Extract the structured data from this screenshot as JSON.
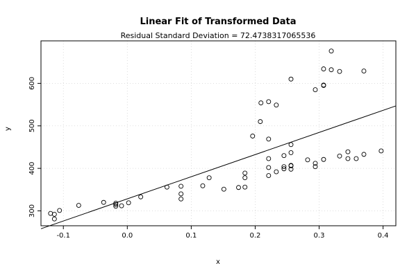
{
  "chart_data": {
    "type": "scatter",
    "title": "Linear Fit of Transformed Data",
    "subtitle": "Residual Standard Deviation =  72.4738317065536",
    "xlabel": "x",
    "ylabel": "y",
    "xlim": [
      -0.135,
      0.42
    ],
    "ylim": [
      265,
      700
    ],
    "xticks": [
      -0.1,
      0.0,
      0.1,
      0.2,
      0.3,
      0.4
    ],
    "xtick_labels": [
      "-0.1",
      "0.0",
      "0.1",
      "0.2",
      "0.3",
      "0.4"
    ],
    "yticks": [
      300,
      400,
      500,
      600
    ],
    "ytick_labels": [
      "300",
      "400",
      "500",
      "600"
    ],
    "grid": true,
    "fit_line": {
      "x": [
        -0.135,
        0.42
      ],
      "y": [
        258,
        547
      ]
    },
    "points": [
      [
        -0.12,
        294
      ],
      [
        -0.114,
        292
      ],
      [
        -0.114,
        281
      ],
      [
        -0.106,
        301
      ],
      [
        -0.076,
        313
      ],
      [
        -0.037,
        320
      ],
      [
        -0.018,
        318
      ],
      [
        -0.018,
        315
      ],
      [
        -0.018,
        311
      ],
      [
        -0.009,
        312
      ],
      [
        0.002,
        319
      ],
      [
        0.021,
        333
      ],
      [
        0.062,
        356
      ],
      [
        0.084,
        358
      ],
      [
        0.084,
        340
      ],
      [
        0.084,
        328
      ],
      [
        0.118,
        359
      ],
      [
        0.128,
        378
      ],
      [
        0.151,
        351
      ],
      [
        0.174,
        355
      ],
      [
        0.184,
        356
      ],
      [
        0.184,
        378
      ],
      [
        0.184,
        389
      ],
      [
        0.196,
        476
      ],
      [
        0.208,
        510
      ],
      [
        0.209,
        554
      ],
      [
        0.221,
        557
      ],
      [
        0.221,
        469
      ],
      [
        0.221,
        423
      ],
      [
        0.221,
        402
      ],
      [
        0.221,
        383
      ],
      [
        0.233,
        549
      ],
      [
        0.233,
        392
      ],
      [
        0.245,
        430
      ],
      [
        0.245,
        404
      ],
      [
        0.245,
        399
      ],
      [
        0.256,
        610
      ],
      [
        0.256,
        456
      ],
      [
        0.256,
        437
      ],
      [
        0.256,
        407
      ],
      [
        0.256,
        406
      ],
      [
        0.256,
        398
      ],
      [
        0.282,
        420
      ],
      [
        0.294,
        585
      ],
      [
        0.294,
        412
      ],
      [
        0.294,
        404
      ],
      [
        0.307,
        634
      ],
      [
        0.307,
        596
      ],
      [
        0.307,
        595
      ],
      [
        0.307,
        421
      ],
      [
        0.319,
        676
      ],
      [
        0.319,
        632
      ],
      [
        0.332,
        628
      ],
      [
        0.332,
        429
      ],
      [
        0.345,
        439
      ],
      [
        0.345,
        423
      ],
      [
        0.358,
        423
      ],
      [
        0.37,
        629
      ],
      [
        0.37,
        433
      ],
      [
        0.397,
        441
      ]
    ]
  }
}
